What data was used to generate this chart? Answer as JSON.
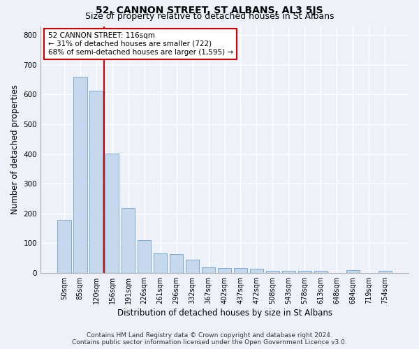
{
  "title": "52, CANNON STREET, ST ALBANS, AL3 5JS",
  "subtitle": "Size of property relative to detached houses in St Albans",
  "xlabel": "Distribution of detached houses by size in St Albans",
  "ylabel": "Number of detached properties",
  "categories": [
    "50sqm",
    "85sqm",
    "120sqm",
    "156sqm",
    "191sqm",
    "226sqm",
    "261sqm",
    "296sqm",
    "332sqm",
    "367sqm",
    "402sqm",
    "437sqm",
    "472sqm",
    "508sqm",
    "543sqm",
    "578sqm",
    "613sqm",
    "648sqm",
    "684sqm",
    "719sqm",
    "754sqm"
  ],
  "values": [
    178,
    660,
    612,
    402,
    218,
    110,
    65,
    63,
    45,
    18,
    16,
    16,
    14,
    7,
    7,
    7,
    7,
    0,
    9,
    0,
    6
  ],
  "bar_color": "#c5d8ee",
  "bar_edge_color": "#6ea3cc",
  "vline_x_index": 2,
  "vline_color": "#cc0000",
  "annotation_text": "52 CANNON STREET: 116sqm\n← 31% of detached houses are smaller (722)\n68% of semi-detached houses are larger (1,595) →",
  "annotation_box_color": "#cc0000",
  "annotation_text_color": "#000000",
  "ylim": [
    0,
    830
  ],
  "yticks": [
    0,
    100,
    200,
    300,
    400,
    500,
    600,
    700,
    800
  ],
  "footer_line1": "Contains HM Land Registry data © Crown copyright and database right 2024.",
  "footer_line2": "Contains public sector information licensed under the Open Government Licence v3.0.",
  "background_color": "#eef2f8",
  "grid_color": "#ffffff",
  "title_fontsize": 10,
  "subtitle_fontsize": 9,
  "axis_label_fontsize": 8.5,
  "tick_fontsize": 7,
  "footer_fontsize": 6.5,
  "annotation_fontsize": 7.5
}
